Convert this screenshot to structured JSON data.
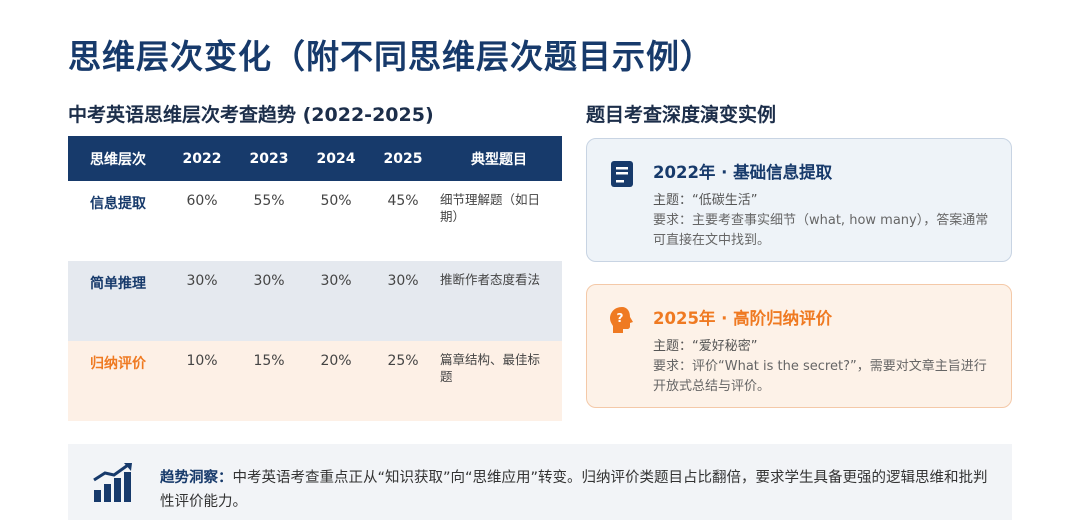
{
  "title": "思维层次变化（附不同思维层次题目示例）",
  "left_section": {
    "title": "中考英语思维层次考查趋势 (2022-2025)",
    "headers": [
      "思维层次",
      "2022",
      "2023",
      "2024",
      "2025",
      "典型题目"
    ],
    "rows": [
      {
        "level": "信息提取",
        "values": [
          "60%",
          "55%",
          "50%",
          "45%"
        ],
        "example": "细节理解题（如日期）"
      },
      {
        "level": "简单推理",
        "values": [
          "30%",
          "30%",
          "30%",
          "30%"
        ],
        "example": "推断作者态度看法"
      },
      {
        "level": "归纳评价",
        "values": [
          "10%",
          "15%",
          "20%",
          "25%"
        ],
        "example": "篇章结构、最佳标题"
      }
    ]
  },
  "right_section": {
    "title": "题目考查深度演变实例",
    "cards": [
      {
        "icon": "book-icon",
        "color": "#173a6b",
        "title": "2022年 · 基础信息提取",
        "topic": "主题：“低碳生活”",
        "requirement": "要求：主要考查事实细节（what, how many），答案通常可直接在文中找到。"
      },
      {
        "icon": "head-question-icon",
        "color": "#ef7a22",
        "title": "2025年 · 高阶归纳评价",
        "topic": "主题：“爱好秘密”",
        "requirement": "要求：评价“What is the secret?”，需要对文章主旨进行开放式总结与评价。"
      }
    ]
  },
  "insight": {
    "icon": "bar-chart-trend-icon",
    "label": "趋势洞察：",
    "text": "中考英语考查重点正从“知识获取”向“思维应用”转变。归纳评价类题目占比翻倍，要求学生具备更强的逻辑思维和批判性评价能力。"
  }
}
